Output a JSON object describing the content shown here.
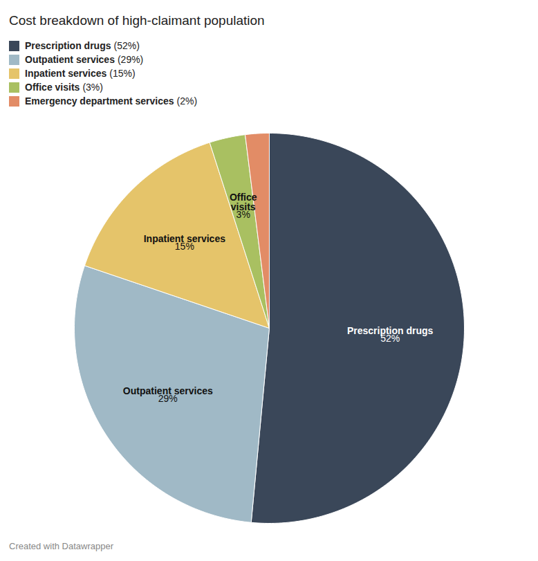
{
  "chart_data": {
    "type": "pie",
    "title": "Cost breakdown of high-claimant population",
    "categories": [
      "Prescription drugs",
      "Outpatient services",
      "Inpatient services",
      "Office visits",
      "Emergency department services"
    ],
    "values": [
      52,
      29,
      15,
      3,
      2
    ],
    "value_labels": [
      "52%",
      "29%",
      "15%",
      "3%",
      "2%"
    ],
    "colors": [
      "#3a4759",
      "#a0b9c6",
      "#e5c46a",
      "#a9c061",
      "#e28c66"
    ],
    "data_labels": true,
    "legend": "top-left",
    "caption": "Created with Datawrapper"
  }
}
